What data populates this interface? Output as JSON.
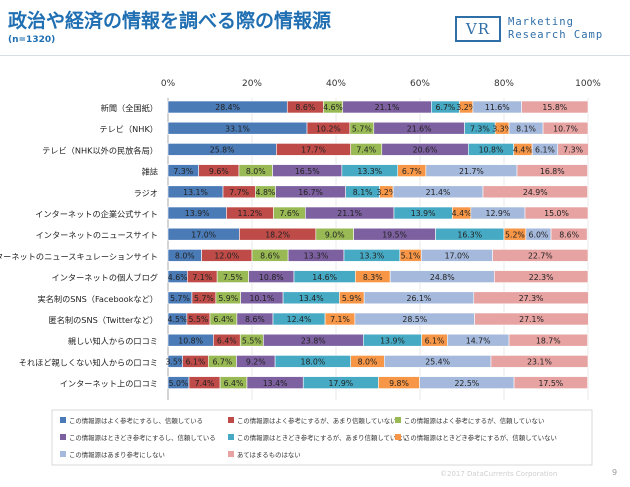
{
  "header": {
    "title": "政治や経済の情報を調べる際の情報源",
    "subtitle": "(n=1320)",
    "logo_mark": "VR",
    "logo_line1": "Marketing",
    "logo_line2": "Research Camp"
  },
  "footer": {
    "copyright": "©2017 DataCurrents Corporation",
    "page": "9"
  },
  "chart_data": {
    "type": "bar",
    "orientation": "horizontal",
    "stacked": true,
    "percent_stacked": true,
    "xlim": [
      0,
      100
    ],
    "x_ticks": [
      "0%",
      "20%",
      "40%",
      "60%",
      "80%",
      "100%"
    ],
    "categories": [
      "新聞（全国紙）",
      "テレビ（NHK）",
      "テレビ（NHK以外の民放各局）",
      "雑誌",
      "ラジオ",
      "インターネットの企業公式サイト",
      "インターネットのニュースサイト",
      "インターネットのニュースキュレーションサイト",
      "インターネットの個人ブログ",
      "実名制のSNS（Facebookなど）",
      "匿名制のSNS（Twitterなど）",
      "親しい知人からの口コミ",
      "それほど親しくない知人からの口コミ",
      "インターネット上の口コミ"
    ],
    "series": [
      {
        "name": "この情報源はよく参考にするし、信頼している",
        "color": "#4a7bb7",
        "values": [
          28.4,
          33.1,
          25.8,
          7.3,
          13.1,
          13.9,
          17.0,
          8.0,
          4.6,
          5.7,
          4.5,
          10.8,
          3.5,
          5.0
        ]
      },
      {
        "name": "この情報源はよく参考にするが、あまり信頼していない",
        "color": "#be4b48",
        "values": [
          8.6,
          10.2,
          17.7,
          9.6,
          7.7,
          11.2,
          18.2,
          12.0,
          7.1,
          5.7,
          5.5,
          6.4,
          6.1,
          7.4
        ]
      },
      {
        "name": "この情報源はよく参考にするが、信頼していない",
        "color": "#98b954",
        "values": [
          4.6,
          5.7,
          7.4,
          8.0,
          4.8,
          7.6,
          9.0,
          8.6,
          7.5,
          5.9,
          6.4,
          5.5,
          6.7,
          6.4
        ]
      },
      {
        "name": "この情報源はときどき参考にするし、信頼している",
        "color": "#7d60a0",
        "values": [
          21.1,
          21.6,
          20.6,
          16.5,
          16.7,
          21.1,
          19.5,
          13.3,
          10.8,
          10.1,
          8.6,
          23.8,
          9.2,
          13.4
        ]
      },
      {
        "name": "この情報源はときどき参考にするが、あまり信頼していない",
        "color": "#46aac5",
        "values": [
          6.7,
          7.3,
          10.8,
          13.3,
          8.1,
          13.9,
          16.3,
          13.3,
          14.6,
          13.4,
          12.4,
          13.9,
          18.0,
          17.9
        ]
      },
      {
        "name": "この情報源はときどき参考にするが、信頼していない",
        "color": "#f79646",
        "values": [
          3.2,
          3.3,
          4.4,
          6.7,
          3.2,
          4.4,
          5.2,
          5.1,
          8.3,
          5.9,
          7.1,
          6.1,
          8.0,
          9.8
        ]
      },
      {
        "name": "この情報源はあまり参考にしない",
        "color": "#a5b9dc",
        "values": [
          11.6,
          8.1,
          6.1,
          21.7,
          21.4,
          12.9,
          6.0,
          17.0,
          24.8,
          26.1,
          28.5,
          14.7,
          25.4,
          22.5
        ]
      },
      {
        "name": "あてはまるものはない",
        "color": "#e7a3a2",
        "values": [
          15.8,
          10.7,
          7.3,
          16.8,
          24.9,
          15.0,
          8.6,
          22.7,
          22.3,
          27.3,
          27.1,
          18.7,
          23.1,
          17.5
        ]
      }
    ]
  }
}
